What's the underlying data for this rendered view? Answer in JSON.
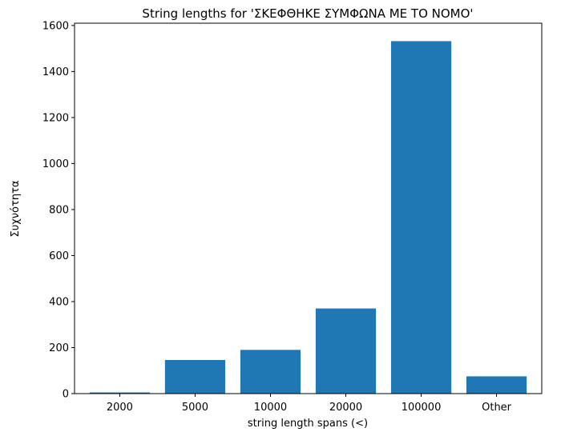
{
  "chart_data": {
    "type": "bar",
    "title": "String lengths for 'ΣΚΕΦΘΗΚΕ ΣΥΜΦΩΝΑ ΜΕ ΤΟ ΝΟΜΟ'",
    "xlabel": "string length spans (<)",
    "ylabel": "Συχνότητα",
    "categories": [
      "2000",
      "5000",
      "10000",
      "20000",
      "100000",
      "Other"
    ],
    "values": [
      5,
      146,
      190,
      370,
      1532,
      75
    ],
    "ylim": [
      0,
      1610
    ],
    "yticks": [
      0,
      200,
      400,
      600,
      800,
      1000,
      1200,
      1400,
      1600
    ],
    "bar_color": "#1f77b4",
    "grid": false,
    "legend": false
  }
}
